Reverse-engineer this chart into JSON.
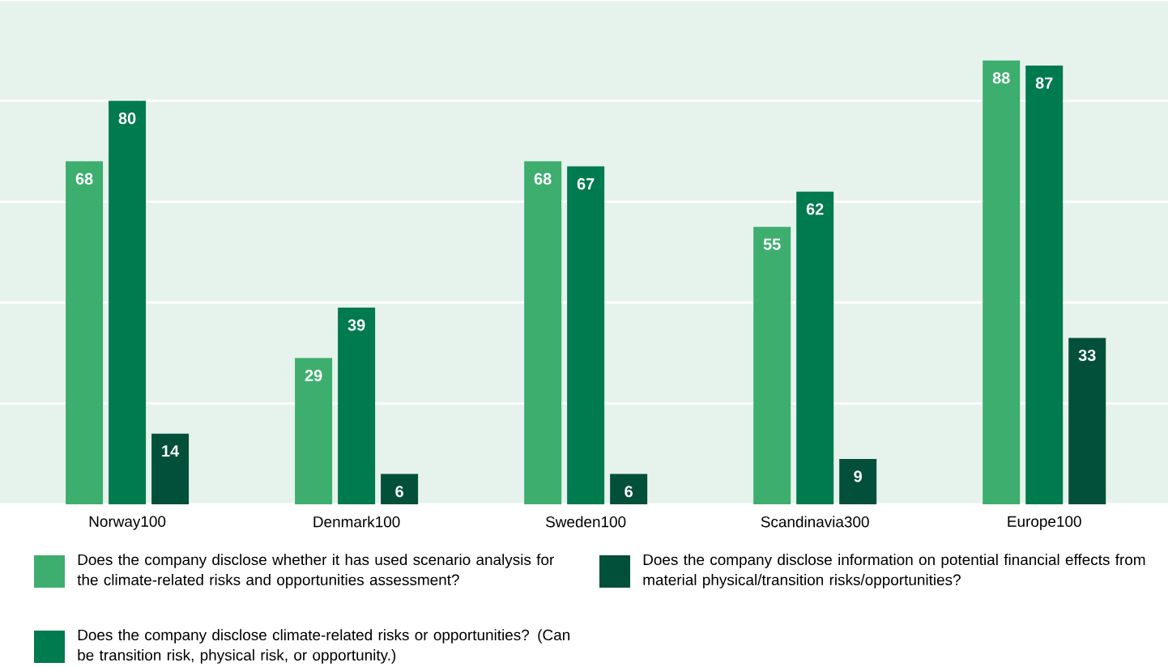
{
  "chart_data": {
    "type": "bar",
    "categories": [
      "Norway100",
      "Denmark100",
      "Sweden100",
      "Scandinavia300",
      "Europe100"
    ],
    "series": [
      {
        "name": "Does the company disclose whether it has used scenario analysis for the climate-related risks and opportunities assessment?",
        "color": "#3dae6e",
        "values": [
          68,
          29,
          68,
          55,
          88
        ]
      },
      {
        "name": "Does the company disclose climate-related risks or opportunities? (Can be transition risk, physical risk, or opportunity.)",
        "color": "#007a4f",
        "values": [
          80,
          39,
          67,
          62,
          87
        ]
      },
      {
        "name": "Does the company disclose information on potential financial effects from material physical/transition risks/opportunities?",
        "color": "#03503a",
        "values": [
          14,
          6,
          6,
          9,
          33
        ]
      }
    ],
    "ylim": [
      0,
      100
    ],
    "yticks": [
      {
        "value": 0,
        "label": null
      },
      {
        "value": 20,
        "label": null
      },
      {
        "value": 40,
        "label": null
      },
      {
        "value": 60,
        "label": null
      },
      {
        "value": 80,
        "label": null
      },
      {
        "value": 100,
        "label": null
      }
    ],
    "tick_labels": "x",
    "grid": "y",
    "data_labels": true,
    "legend": "bottom"
  }
}
